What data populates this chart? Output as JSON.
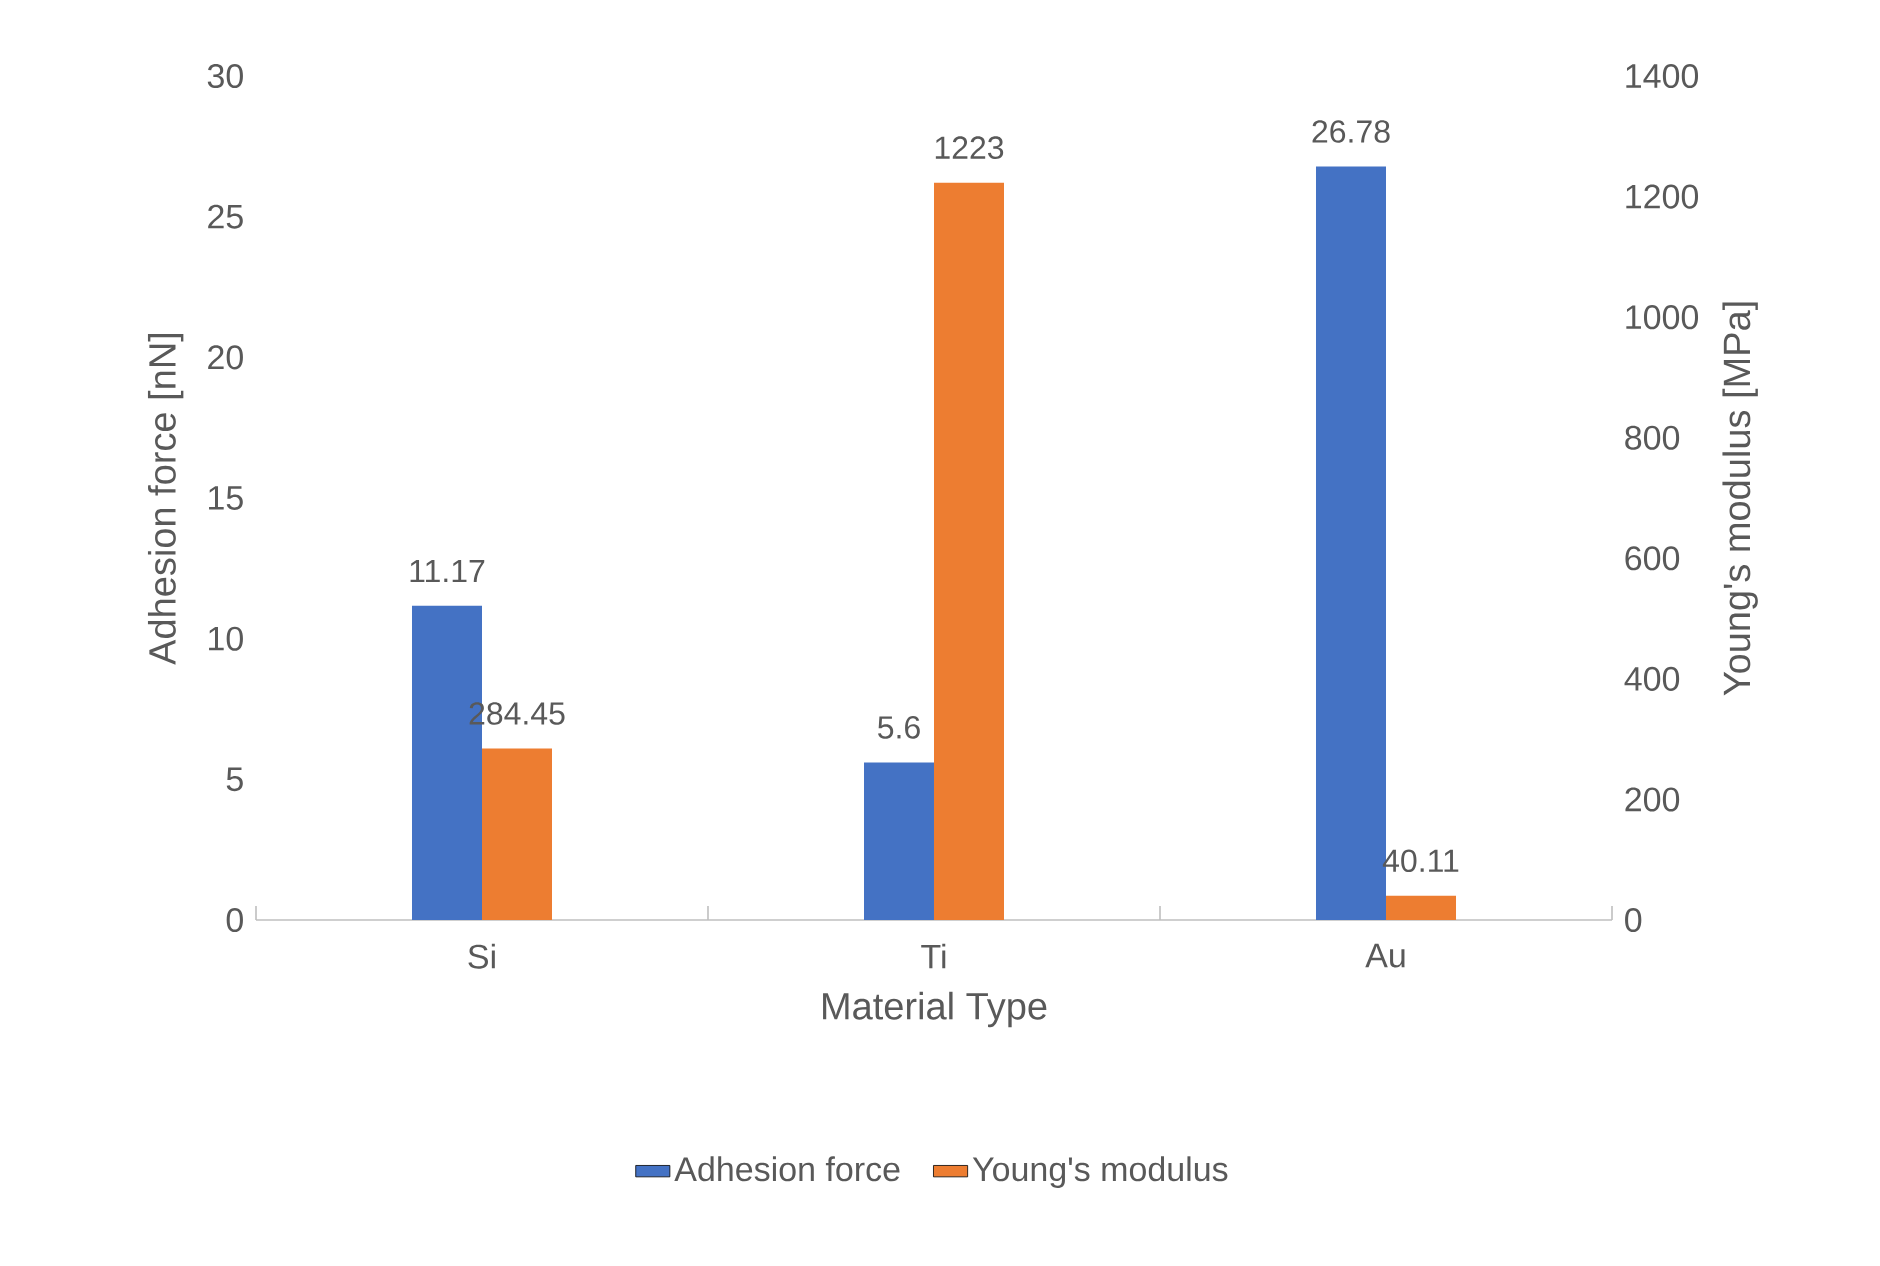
{
  "chart_data": {
    "type": "bar",
    "xlabel": "Material Type",
    "ylabel": "Adhesion force [nN]",
    "y2label": "Young's modulus [MPa]",
    "categories": [
      "Si",
      "Ti",
      "Au"
    ],
    "series": [
      {
        "name": "Adhesion force",
        "color": "#4472c4",
        "values": [
          11.17,
          5.6,
          26.78
        ]
      },
      {
        "name": "Young's modulus",
        "color": "#ed7d31",
        "values": [
          284.45,
          1223,
          40.11
        ],
        "axis": "y2"
      }
    ],
    "ylim": [
      0,
      30
    ],
    "yticks": [
      0,
      5,
      10,
      15,
      20,
      25,
      30
    ],
    "y2lim": [
      0,
      1400
    ],
    "y2ticks": [
      0,
      200,
      400,
      600,
      800,
      1000,
      1200,
      1400
    ],
    "legend": "bottom",
    "data_labels": true
  }
}
